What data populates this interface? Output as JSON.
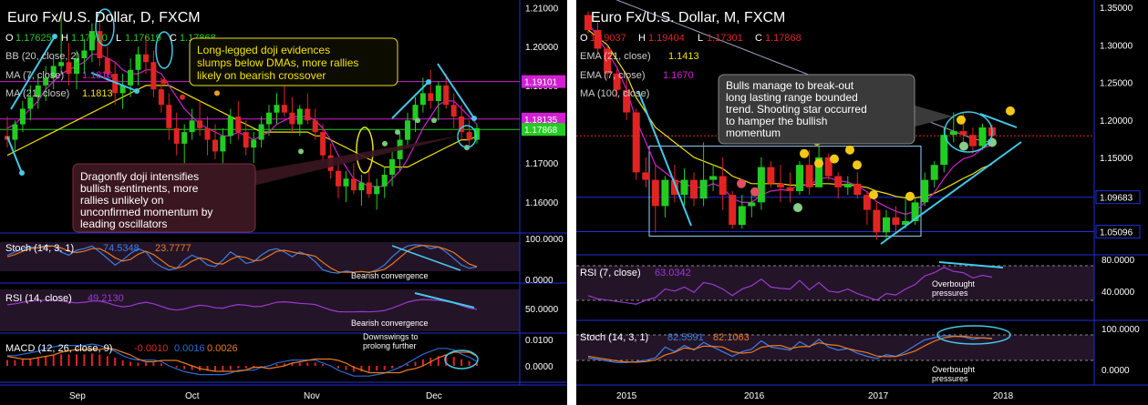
{
  "colors": {
    "bg": "#000000",
    "up": "#22cc22",
    "down": "#e02424",
    "ema21": "#f2e200",
    "ema7": "#d020d0",
    "ma100": "#9aa0c0",
    "axis": "#1e2fd8",
    "cyan": "#44c8e8",
    "stoch": "#3a7fe8",
    "stochSig": "#e87a20",
    "rsi": "#9a3ad0",
    "macdLine": "#2a6cd8",
    "macdSig": "#e87a20",
    "hist": "#e02424",
    "panelBg": "#241428"
  },
  "left": {
    "title": "Euro Fx/U.S. Dollar, D, FXCM",
    "ohlc": {
      "o": "1.17625",
      "h": "1.17910",
      "l": "1.17619",
      "c": "1.17868"
    },
    "bb": "BB (20, close, 2)",
    "ma7": "MA (7, close)",
    "ma7_val": "1.1816",
    "ma21": "MA (21, close)",
    "ma21_val": "1.1813",
    "price_levels": [
      "1.19101",
      "1.18135",
      "1.17868"
    ],
    "annotation1": [
      "Long-legged doji evidences",
      "slumps below DMAs, more rallies",
      "likely on bearish crossover"
    ],
    "annotation2": [
      "Dragonfly doji intensifies",
      "bullish sentiments, more",
      "rallies unlikely on",
      "unconfirmed momentum by",
      "leading oscillators"
    ],
    "stoch": {
      "label": "Stoch (14, 3, 1)",
      "k": "74.5348",
      "d": "23.7777",
      "note": "Bearish convergence",
      "level": "100.0000",
      "zero": "0.0000"
    },
    "rsi": {
      "label": "RSI (14, close)",
      "val": "49.2130",
      "note": "Bearish convergence",
      "level": "50.0000"
    },
    "macd": {
      "label": "MACD (12, 26, close, 9)",
      "v1": "-0.0010",
      "v2": "0.0016",
      "v3": "0.0026",
      "note": [
        "Downswings to",
        "prolong further"
      ],
      "level": "0.0100",
      "zero": "0.0000"
    },
    "xlabels": [
      "Sep",
      "Oct",
      "Nov",
      "Dec"
    ]
  },
  "right": {
    "title": "Euro Fx/U.S. Dollar, M, FXCM",
    "ohlc": {
      "o": "1.19037",
      "h": "1.19404",
      "l": "1.17301",
      "c": "1.17868"
    },
    "ema21": "EMA (21, close)",
    "ema21_val": "1.1413",
    "ema7": "EMA (7, close)",
    "ema7_val": "1.1670",
    "ma100": "MA (100, close)",
    "price_levels": [
      "1.09683",
      "1.05096"
    ],
    "annotation": [
      "Bulls manage to break-out",
      "long lasting range bounded",
      "trend. Shooting star occurred",
      "to hamper the bullish",
      "momentum"
    ],
    "rsi": {
      "label": "RSI (7, close)",
      "val": "63.0342",
      "note": [
        "Overbought",
        "pressures"
      ],
      "level": "80.0000",
      "mid": "40.0000"
    },
    "stoch": {
      "label": "Stoch (14, 3, 1)",
      "k": "82.5591",
      "d": "82.1063",
      "note": [
        "Overbought",
        "pressures"
      ],
      "level": "100.0000",
      "zero": "0.0000"
    },
    "xlabels": [
      "2015",
      "2016",
      "2017",
      "2018"
    ]
  },
  "chart_data": [
    {
      "type": "candlestick",
      "title": "Euro Fx/U.S. Dollar, D, FXCM",
      "ylim": [
        1.152,
        1.212
      ],
      "yticks": [
        1.16,
        1.17,
        1.18,
        1.19,
        1.2,
        1.21
      ],
      "ytick_labels": [
        "1.16000",
        "1.17000",
        "1.18000",
        "1.19000",
        "1.20000",
        "1.21000"
      ],
      "xlabels": [
        "Sep",
        "Oct",
        "Nov",
        "Dec"
      ],
      "ohlc": [
        [
          1.177,
          1.182,
          1.174,
          1.176
        ],
        [
          1.176,
          1.181,
          1.173,
          1.18
        ],
        [
          1.18,
          1.186,
          1.178,
          1.184
        ],
        [
          1.184,
          1.19,
          1.181,
          1.187
        ],
        [
          1.187,
          1.193,
          1.184,
          1.19
        ],
        [
          1.19,
          1.195,
          1.186,
          1.192
        ],
        [
          1.192,
          1.197,
          1.189,
          1.195
        ],
        [
          1.195,
          1.209,
          1.193,
          1.196
        ],
        [
          1.196,
          1.201,
          1.19,
          1.193
        ],
        [
          1.193,
          1.199,
          1.189,
          1.197
        ],
        [
          1.197,
          1.202,
          1.193,
          1.199
        ],
        [
          1.199,
          1.206,
          1.196,
          1.204
        ],
        [
          1.204,
          1.207,
          1.195,
          1.197
        ],
        [
          1.197,
          1.2,
          1.191,
          1.193
        ],
        [
          1.193,
          1.196,
          1.185,
          1.188
        ],
        [
          1.188,
          1.193,
          1.184,
          1.19
        ],
        [
          1.19,
          1.197,
          1.187,
          1.194
        ],
        [
          1.194,
          1.2,
          1.19,
          1.198
        ],
        [
          1.198,
          1.203,
          1.193,
          1.196
        ],
        [
          1.196,
          1.199,
          1.187,
          1.189
        ],
        [
          1.189,
          1.192,
          1.183,
          1.185
        ],
        [
          1.185,
          1.188,
          1.176,
          1.179
        ],
        [
          1.179,
          1.183,
          1.172,
          1.175
        ],
        [
          1.175,
          1.18,
          1.17,
          1.178
        ],
        [
          1.178,
          1.184,
          1.176,
          1.181
        ],
        [
          1.181,
          1.186,
          1.177,
          1.179
        ],
        [
          1.179,
          1.182,
          1.172,
          1.176
        ],
        [
          1.176,
          1.18,
          1.171,
          1.173
        ],
        [
          1.173,
          1.179,
          1.17,
          1.177
        ],
        [
          1.177,
          1.184,
          1.175,
          1.182
        ],
        [
          1.182,
          1.186,
          1.176,
          1.178
        ],
        [
          1.178,
          1.181,
          1.172,
          1.174
        ],
        [
          1.174,
          1.178,
          1.17,
          1.176
        ],
        [
          1.176,
          1.182,
          1.174,
          1.18
        ],
        [
          1.18,
          1.185,
          1.177,
          1.183
        ],
        [
          1.183,
          1.188,
          1.18,
          1.185
        ],
        [
          1.185,
          1.19,
          1.182,
          1.183
        ],
        [
          1.183,
          1.187,
          1.178,
          1.18
        ],
        [
          1.18,
          1.185,
          1.177,
          1.184
        ],
        [
          1.184,
          1.188,
          1.18,
          1.181
        ],
        [
          1.181,
          1.184,
          1.176,
          1.178
        ],
        [
          1.178,
          1.18,
          1.17,
          1.172
        ],
        [
          1.172,
          1.175,
          1.166,
          1.168
        ],
        [
          1.168,
          1.171,
          1.161,
          1.164
        ],
        [
          1.164,
          1.168,
          1.16,
          1.166
        ],
        [
          1.166,
          1.17,
          1.162,
          1.163
        ],
        [
          1.163,
          1.167,
          1.159,
          1.165
        ],
        [
          1.165,
          1.169,
          1.161,
          1.162
        ],
        [
          1.162,
          1.166,
          1.158,
          1.164
        ],
        [
          1.164,
          1.169,
          1.161,
          1.167
        ],
        [
          1.167,
          1.173,
          1.164,
          1.171
        ],
        [
          1.171,
          1.178,
          1.168,
          1.176
        ],
        [
          1.176,
          1.183,
          1.174,
          1.181
        ],
        [
          1.181,
          1.187,
          1.178,
          1.185
        ],
        [
          1.185,
          1.192,
          1.183,
          1.188
        ],
        [
          1.188,
          1.194,
          1.184,
          1.186
        ],
        [
          1.186,
          1.191,
          1.181,
          1.19
        ],
        [
          1.19,
          1.193,
          1.184,
          1.185
        ],
        [
          1.185,
          1.188,
          1.179,
          1.182
        ],
        [
          1.182,
          1.185,
          1.176,
          1.178
        ],
        [
          1.178,
          1.181,
          1.174,
          1.176
        ],
        [
          1.176,
          1.18,
          1.175,
          1.179
        ]
      ],
      "ma7": [
        1.179,
        1.18,
        1.182,
        1.184,
        1.186,
        1.189,
        1.191,
        1.193,
        1.194,
        1.195,
        1.196,
        1.198,
        1.198,
        1.197,
        1.196,
        1.194,
        1.193,
        1.193,
        1.194,
        1.194,
        1.193,
        1.19,
        1.187,
        1.184,
        1.182,
        1.18,
        1.179,
        1.178,
        1.177,
        1.177,
        1.178,
        1.177,
        1.176,
        1.177,
        1.178,
        1.18,
        1.181,
        1.182,
        1.182,
        1.182,
        1.181,
        1.179,
        1.176,
        1.172,
        1.169,
        1.166,
        1.165,
        1.164,
        1.164,
        1.164,
        1.166,
        1.168,
        1.171,
        1.175,
        1.179,
        1.182,
        1.185,
        1.186,
        1.186,
        1.184,
        1.182,
        1.18
      ],
      "ma21": [
        1.172,
        1.173,
        1.174,
        1.175,
        1.176,
        1.177,
        1.178,
        1.179,
        1.18,
        1.181,
        1.182,
        1.183,
        1.184,
        1.185,
        1.186,
        1.187,
        1.188,
        1.189,
        1.19,
        1.19,
        1.19,
        1.19,
        1.189,
        1.188,
        1.187,
        1.186,
        1.185,
        1.184,
        1.183,
        1.182,
        1.181,
        1.18,
        1.179,
        1.178,
        1.178,
        1.178,
        1.178,
        1.178,
        1.178,
        1.178,
        1.177,
        1.177,
        1.176,
        1.175,
        1.174,
        1.173,
        1.172,
        1.171,
        1.17,
        1.169,
        1.169,
        1.169,
        1.169,
        1.17,
        1.171,
        1.172,
        1.173,
        1.174,
        1.175,
        1.176,
        1.176,
        1.177
      ],
      "stoch_k": [
        60,
        70,
        80,
        85,
        82,
        90,
        88,
        70,
        60,
        75,
        80,
        88,
        70,
        50,
        30,
        45,
        65,
        80,
        70,
        40,
        25,
        15,
        20,
        45,
        60,
        50,
        30,
        25,
        45,
        70,
        55,
        35,
        40,
        60,
        75,
        80,
        70,
        55,
        70,
        60,
        40,
        15,
        8,
        5,
        12,
        8,
        10,
        7,
        15,
        30,
        55,
        75,
        88,
        92,
        90,
        80,
        85,
        70,
        50,
        30,
        20,
        24
      ],
      "stoch_d": [
        55,
        62,
        72,
        80,
        83,
        86,
        88,
        82,
        72,
        68,
        72,
        80,
        80,
        68,
        52,
        42,
        47,
        63,
        72,
        62,
        45,
        27,
        20,
        27,
        42,
        52,
        47,
        35,
        33,
        47,
        57,
        53,
        43,
        45,
        58,
        72,
        75,
        70,
        65,
        62,
        57,
        38,
        21,
        9,
        8,
        8,
        10,
        8,
        11,
        17,
        33,
        53,
        73,
        85,
        90,
        88,
        85,
        78,
        68,
        50,
        33,
        25
      ]
    },
    {
      "type": "candlestick",
      "title": "Euro Fx/U.S. Dollar, M, FXCM",
      "ylim": [
        1.02,
        1.36
      ],
      "yticks": [
        1.1,
        1.15,
        1.2,
        1.25,
        1.3,
        1.35
      ],
      "ytick_labels": [
        "1.10000",
        "1.15000",
        "1.20000",
        "1.25000",
        "1.30000",
        "1.35000"
      ],
      "xlabels": [
        "2015",
        "2016",
        "2017",
        "2018"
      ],
      "ohlc": [
        [
          1.34,
          1.345,
          1.315,
          1.32
        ],
        [
          1.32,
          1.33,
          1.29,
          1.295
        ],
        [
          1.295,
          1.3,
          1.255,
          1.262
        ],
        [
          1.262,
          1.268,
          1.23,
          1.24
        ],
        [
          1.24,
          1.26,
          1.2,
          1.21
        ],
        [
          1.21,
          1.215,
          1.12,
          1.13
        ],
        [
          1.13,
          1.15,
          1.11,
          1.12
        ],
        [
          1.12,
          1.14,
          1.05,
          1.085
        ],
        [
          1.085,
          1.125,
          1.07,
          1.12
        ],
        [
          1.12,
          1.14,
          1.09,
          1.1
        ],
        [
          1.1,
          1.135,
          1.085,
          1.12
        ],
        [
          1.12,
          1.13,
          1.085,
          1.095
        ],
        [
          1.095,
          1.17,
          1.085,
          1.12
        ],
        [
          1.12,
          1.14,
          1.105,
          1.125
        ],
        [
          1.125,
          1.15,
          1.08,
          1.1
        ],
        [
          1.1,
          1.105,
          1.055,
          1.06
        ],
        [
          1.06,
          1.1,
          1.055,
          1.085
        ],
        [
          1.085,
          1.1,
          1.07,
          1.09
        ],
        [
          1.09,
          1.15,
          1.08,
          1.137
        ],
        [
          1.137,
          1.145,
          1.11,
          1.115
        ],
        [
          1.115,
          1.14,
          1.09,
          1.11
        ],
        [
          1.11,
          1.13,
          1.09,
          1.105
        ],
        [
          1.105,
          1.145,
          1.1,
          1.14
        ],
        [
          1.14,
          1.16,
          1.1,
          1.11
        ],
        [
          1.11,
          1.165,
          1.11,
          1.15
        ],
        [
          1.15,
          1.155,
          1.12,
          1.125
        ],
        [
          1.125,
          1.13,
          1.095,
          1.11
        ],
        [
          1.11,
          1.125,
          1.1,
          1.115
        ],
        [
          1.115,
          1.13,
          1.095,
          1.1
        ],
        [
          1.1,
          1.105,
          1.06,
          1.08
        ],
        [
          1.08,
          1.09,
          1.04,
          1.05
        ],
        [
          1.05,
          1.08,
          1.04,
          1.07
        ],
        [
          1.07,
          1.085,
          1.05,
          1.06
        ],
        [
          1.06,
          1.095,
          1.055,
          1.065
        ],
        [
          1.065,
          1.095,
          1.06,
          1.09
        ],
        [
          1.09,
          1.13,
          1.085,
          1.12
        ],
        [
          1.12,
          1.145,
          1.11,
          1.14
        ],
        [
          1.14,
          1.19,
          1.13,
          1.18
        ],
        [
          1.18,
          1.21,
          1.17,
          1.185
        ],
        [
          1.185,
          1.21,
          1.17,
          1.18
        ],
        [
          1.18,
          1.19,
          1.155,
          1.165
        ],
        [
          1.165,
          1.195,
          1.16,
          1.19
        ],
        [
          1.19,
          1.194,
          1.173,
          1.179
        ]
      ],
      "ema21": [
        1.32,
        1.31,
        1.3,
        1.28,
        1.26,
        1.23,
        1.21,
        1.19,
        1.18,
        1.17,
        1.16,
        1.15,
        1.145,
        1.14,
        1.135,
        1.125,
        1.12,
        1.115,
        1.115,
        1.115,
        1.115,
        1.113,
        1.113,
        1.113,
        1.115,
        1.115,
        1.114,
        1.113,
        1.112,
        1.11,
        1.105,
        1.102,
        1.098,
        1.096,
        1.096,
        1.098,
        1.102,
        1.108,
        1.115,
        1.122,
        1.128,
        1.136,
        1.141
      ],
      "ema7": [
        1.33,
        1.31,
        1.29,
        1.27,
        1.24,
        1.2,
        1.17,
        1.14,
        1.13,
        1.12,
        1.115,
        1.11,
        1.11,
        1.115,
        1.11,
        1.095,
        1.09,
        1.09,
        1.1,
        1.105,
        1.107,
        1.106,
        1.115,
        1.112,
        1.122,
        1.123,
        1.119,
        1.117,
        1.112,
        1.104,
        1.091,
        1.084,
        1.078,
        1.074,
        1.078,
        1.09,
        1.103,
        1.122,
        1.138,
        1.148,
        1.152,
        1.162,
        1.167
      ],
      "ma100": [
        1.37,
        1.368,
        1.365,
        1.36,
        1.355,
        1.35,
        1.345,
        1.34,
        1.335,
        1.33,
        1.325,
        1.32,
        1.315,
        1.31,
        1.305,
        1.3,
        1.295,
        1.29,
        1.285,
        1.28,
        1.275,
        1.27,
        1.265,
        1.26,
        1.255,
        1.25,
        1.245,
        1.24,
        1.235,
        1.23,
        1.225,
        1.22,
        1.215,
        1.21,
        1.205,
        1.2,
        1.195,
        1.19,
        1.185,
        1.18,
        1.175,
        1.172,
        1.17
      ],
      "rsi": [
        35,
        30,
        28,
        26,
        24,
        22,
        28,
        32,
        45,
        42,
        48,
        40,
        55,
        52,
        45,
        35,
        45,
        50,
        60,
        48,
        46,
        45,
        58,
        44,
        55,
        42,
        40,
        45,
        38,
        33,
        28,
        38,
        36,
        45,
        52,
        65,
        70,
        78,
        72,
        70,
        62,
        66,
        63
      ],
      "stoch_k": [
        20,
        15,
        10,
        5,
        5,
        8,
        12,
        20,
        55,
        40,
        60,
        45,
        70,
        55,
        40,
        25,
        40,
        48,
        75,
        55,
        50,
        45,
        72,
        55,
        80,
        55,
        45,
        50,
        35,
        25,
        18,
        30,
        25,
        40,
        60,
        78,
        85,
        92,
        90,
        88,
        80,
        85,
        83
      ],
      "stoch_d": [
        25,
        20,
        15,
        10,
        7,
        6,
        8,
        13,
        29,
        38,
        52,
        48,
        58,
        57,
        55,
        40,
        35,
        38,
        54,
        59,
        60,
        50,
        56,
        57,
        69,
        63,
        60,
        50,
        43,
        37,
        26,
        24,
        24,
        32,
        42,
        59,
        74,
        85,
        89,
        90,
        86,
        84,
        82
      ]
    }
  ]
}
